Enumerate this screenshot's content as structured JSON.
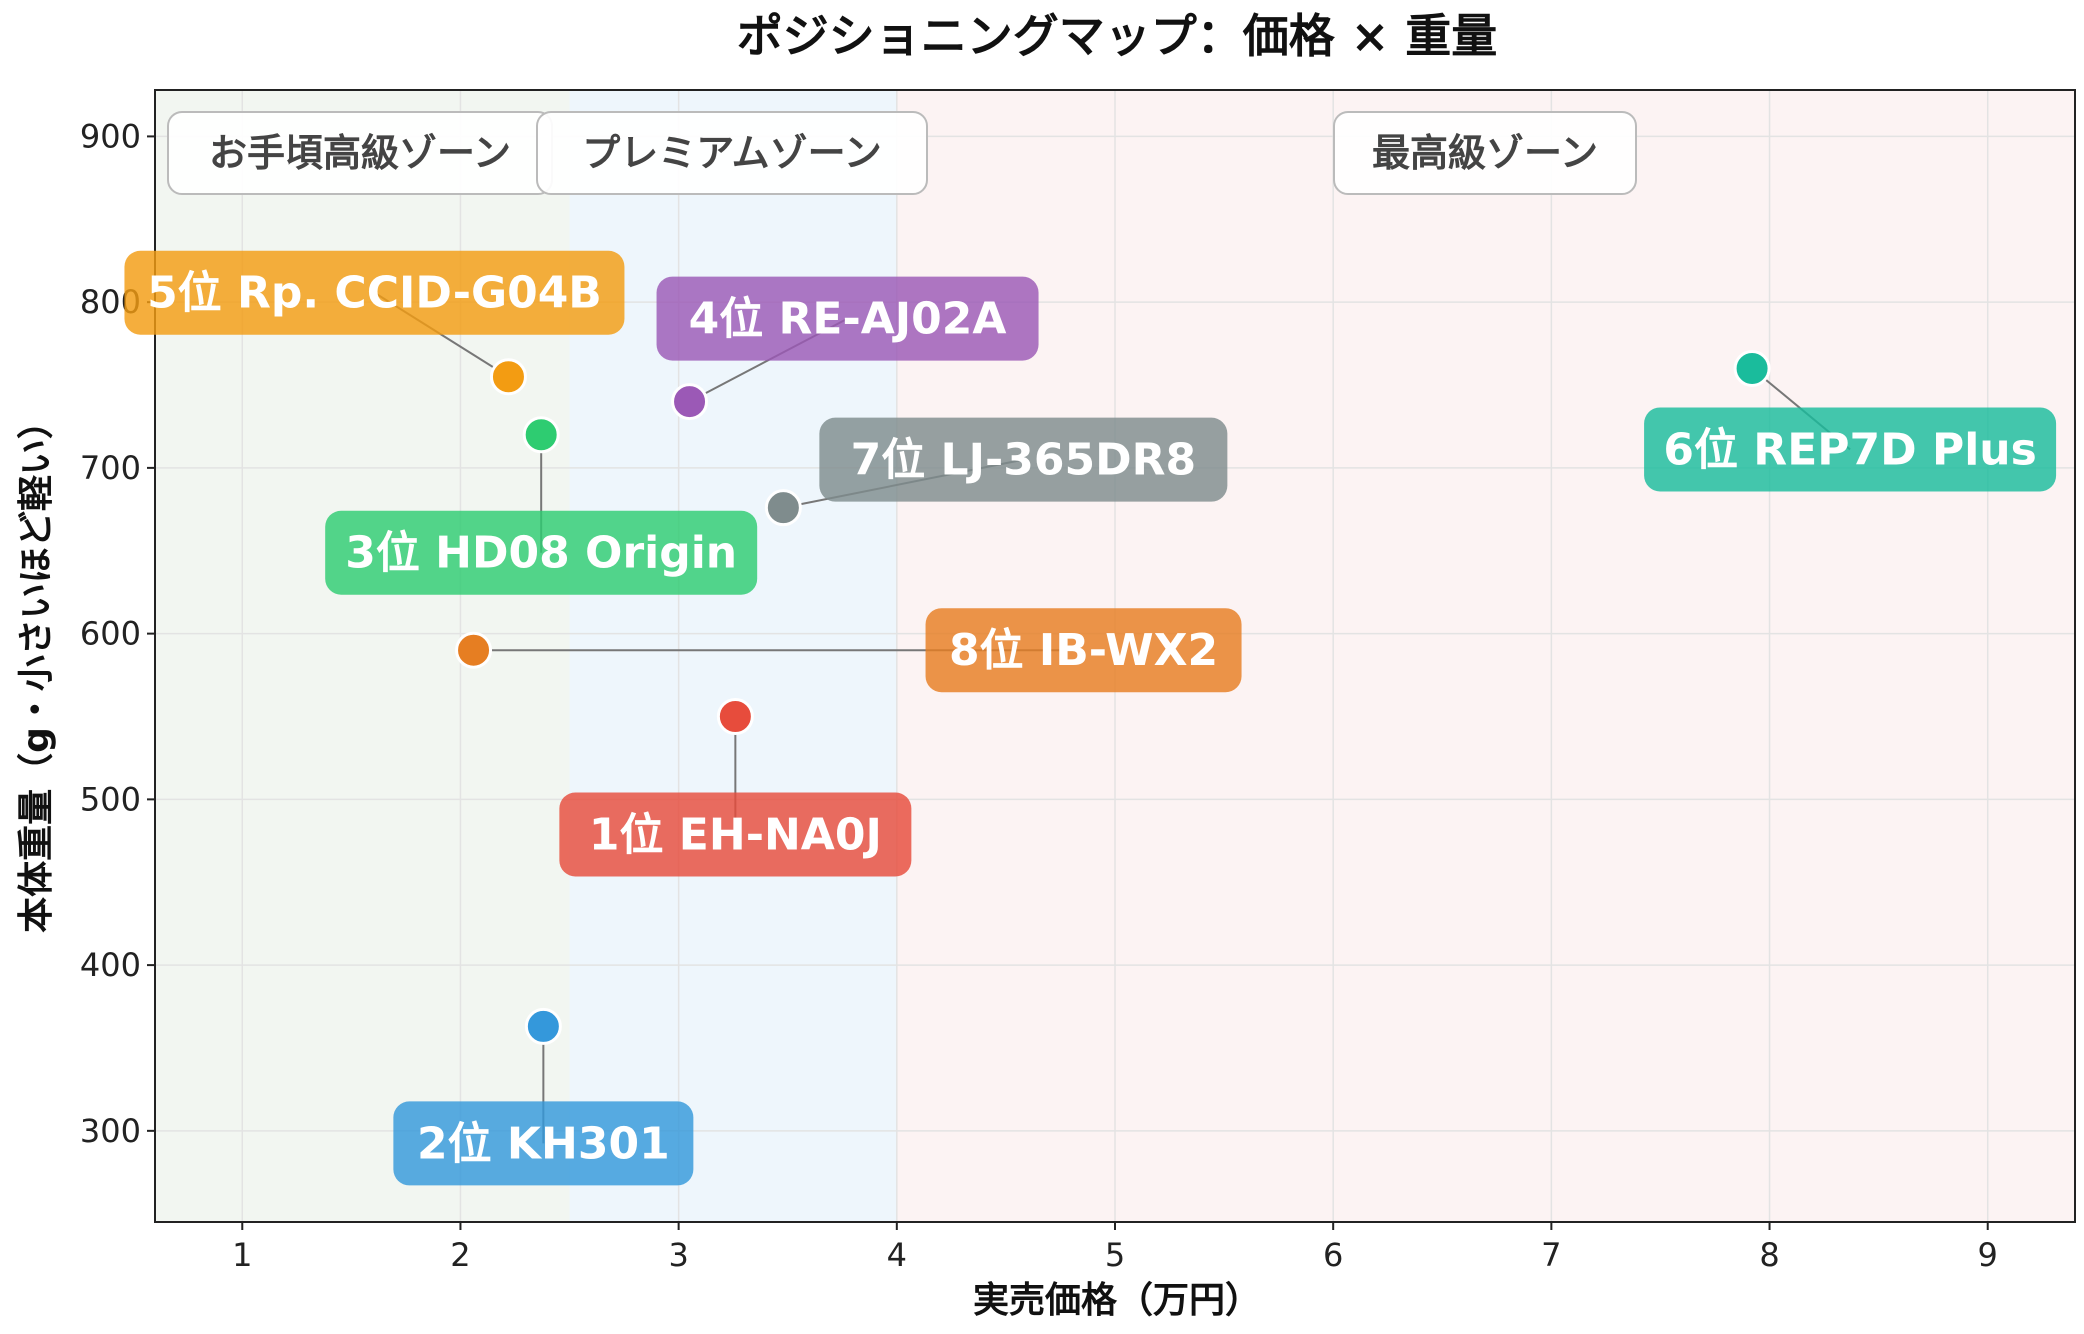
{
  "chart_data": {
    "type": "scatter",
    "title": "ポジショニングマップ：価格 × 重量",
    "xlabel": "実売価格（万円）",
    "ylabel": "本体重量（g・小さいほど軽い）",
    "xlim": [
      0.6,
      9.4
    ],
    "ylim": [
      245,
      928
    ],
    "x_ticks": [
      1,
      2,
      3,
      4,
      5,
      6,
      7,
      8,
      9
    ],
    "y_ticks": [
      300,
      400,
      500,
      600,
      700,
      800,
      900
    ],
    "grid": true,
    "zones": [
      {
        "label": "お手頃高級ゾーン",
        "x_range": [
          0.6,
          2.5
        ],
        "color": "#f2f6f1"
      },
      {
        "label": "プレミアムゾーン",
        "x_range": [
          2.5,
          4.0
        ],
        "color": "#eef6fc"
      },
      {
        "label": "最高級ゾーン",
        "x_range": [
          4.0,
          9.4
        ],
        "color": "#fcf3f3"
      }
    ],
    "points": [
      {
        "label": "1位 EH-NA0J",
        "x": 3.26,
        "y": 550,
        "color": "#e74c3c"
      },
      {
        "label": "2位 KH301",
        "x": 2.38,
        "y": 363,
        "color": "#3498db"
      },
      {
        "label": "3位 HD08 Origin",
        "x": 2.37,
        "y": 720,
        "color": "#2ecc71"
      },
      {
        "label": "4位 RE-AJ02A",
        "x": 3.05,
        "y": 740,
        "color": "#9b59b6"
      },
      {
        "label": "5位 Rp. CCID-G04B",
        "x": 2.22,
        "y": 755,
        "color": "#f39c12"
      },
      {
        "label": "6位 REP7D Plus",
        "x": 7.92,
        "y": 760,
        "color": "#1abc9c"
      },
      {
        "label": "7位 LJ-365DR8",
        "x": 3.48,
        "y": 676,
        "color": "#7f8c8d"
      },
      {
        "label": "8位 IB-WX2",
        "x": 2.06,
        "y": 590,
        "color": "#e67e22"
      }
    ]
  }
}
